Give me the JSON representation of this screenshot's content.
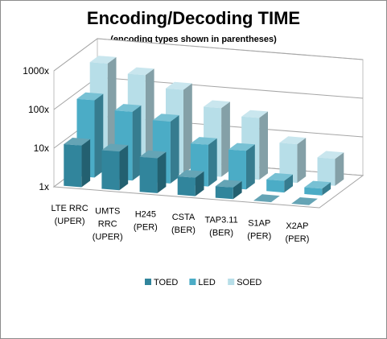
{
  "chart_data": {
    "type": "bar",
    "title": "Encoding/Decoding TIME",
    "subtitle": "(encoding types shown in parentheses)",
    "y_scale": "log",
    "y_ticks": [
      "1x",
      "10x",
      "100x",
      "1000x"
    ],
    "ylim": [
      1,
      1000
    ],
    "categories": [
      [
        "LTE RRC",
        "(UPER)"
      ],
      [
        "UMTS",
        "RRC",
        "(UPER)"
      ],
      [
        "H245",
        "(PER)"
      ],
      [
        "CSTA",
        "(BER)"
      ],
      [
        "TAP3.11",
        "(BER)"
      ],
      [
        "S1AP",
        "(PER)"
      ],
      [
        "X2AP",
        "(PER)"
      ]
    ],
    "series": [
      {
        "name": "TOED",
        "color": "#31859c",
        "values": [
          12,
          10,
          8,
          3,
          2,
          1,
          1
        ]
      },
      {
        "name": "LED",
        "color": "#4bacc6",
        "values": [
          100,
          60,
          40,
          12,
          10,
          2,
          1.5
        ]
      },
      {
        "name": "SOED",
        "color": "#b7dee8",
        "values": [
          500,
          300,
          150,
          60,
          40,
          10,
          5
        ]
      }
    ],
    "grid": true,
    "legend_position": "bottom"
  }
}
